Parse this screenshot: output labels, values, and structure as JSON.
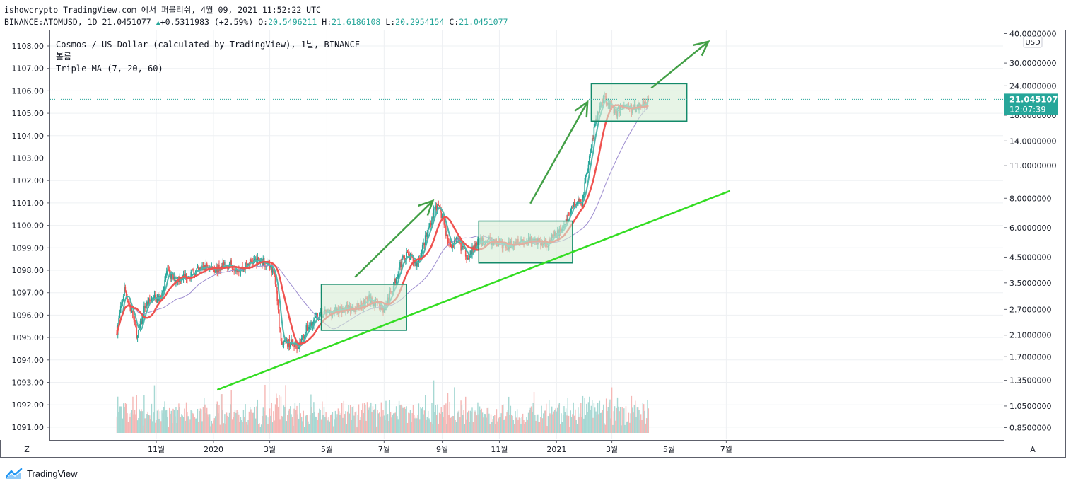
{
  "header": {
    "line1": "ishowcrypto TradingView.com 에서 퍼블리쉬, 4월 09, 2021 11:52:22 UTC",
    "symbol": "BINANCE:ATOMUSD, 1D",
    "price": "21.0451077",
    "change": "+0.5311983 (+2.59%)",
    "o_label": "O:",
    "o_value": "20.5496211",
    "h_label": "H:",
    "h_value": "21.6186108",
    "l_label": "L:",
    "l_value": "20.2954154",
    "c_label": "C:",
    "c_value": "21.0451077"
  },
  "legend": {
    "line1": "Cosmos / US Dollar (calculated by TradingView), 1날, BINANCE",
    "line2": "볼륨",
    "line3": "Triple MA (7, 20, 60)"
  },
  "colors": {
    "up": "#26a69a",
    "down": "#ef5350",
    "ma7": "#4db6ac",
    "ma20": "#ef5350",
    "ma60": "#9c8ccf",
    "trendline": "#33dd22",
    "arrow": "#43a047",
    "box_fill": "#d7ecd5",
    "box_stroke": "#138a6a"
  },
  "chart_data": {
    "type": "candlestick",
    "symbol": "BINANCE:ATOMUSD",
    "interval": "1D",
    "currency": "USD",
    "scale": "log",
    "last_price": "21.0451077",
    "countdown": "12:07:39",
    "left_axis_ticks": [
      "1108.00",
      "1107.00",
      "1106.00",
      "1105.00",
      "1104.00",
      "1103.00",
      "1102.00",
      "1101.00",
      "1100.00",
      "1099.00",
      "1098.00",
      "1097.00",
      "1096.00",
      "1095.00",
      "1094.00",
      "1093.00",
      "1092.00",
      "1091.00"
    ],
    "right_axis_ticks": [
      "40.0000000",
      "30.0000000",
      "24.0000000",
      "18.0000000",
      "14.0000000",
      "11.0000000",
      "8.0000000",
      "6.0000000",
      "4.5000000",
      "3.5000000",
      "2.7000000",
      "2.1000000",
      "1.7000000",
      "1.3500000",
      "1.0500000",
      "0.8500000"
    ],
    "x_axis_ticks": [
      "11월",
      "2020",
      "3월",
      "5월",
      "7월",
      "9월",
      "11월",
      "2021",
      "3월",
      "5월",
      "7월"
    ],
    "corner_left": "Z",
    "corner_right": "A",
    "price_path": [
      [
        "2019-09-20",
        2.2
      ],
      [
        "2019-09-28",
        3.3
      ],
      [
        "2019-10-06",
        2.6
      ],
      [
        "2019-10-12",
        2.05
      ],
      [
        "2019-10-20",
        2.8
      ],
      [
        "2019-10-28",
        3.0
      ],
      [
        "2019-11-05",
        3.0
      ],
      [
        "2019-11-12",
        3.9
      ],
      [
        "2019-11-20",
        3.6
      ],
      [
        "2019-11-28",
        3.7
      ],
      [
        "2019-12-06",
        3.8
      ],
      [
        "2019-12-14",
        3.9
      ],
      [
        "2019-12-24",
        4.1
      ],
      [
        "2020-01-05",
        4.0
      ],
      [
        "2020-01-18",
        4.2
      ],
      [
        "2020-01-30",
        4.0
      ],
      [
        "2020-02-10",
        4.3
      ],
      [
        "2020-02-20",
        4.35
      ],
      [
        "2020-03-01",
        4.2
      ],
      [
        "2020-03-07",
        3.6
      ],
      [
        "2020-03-13",
        1.9
      ],
      [
        "2020-03-20",
        1.95
      ],
      [
        "2020-04-01",
        1.9
      ],
      [
        "2020-04-10",
        2.25
      ],
      [
        "2020-04-20",
        2.5
      ],
      [
        "2020-05-01",
        2.6
      ],
      [
        "2020-05-15",
        2.7
      ],
      [
        "2020-06-01",
        2.75
      ],
      [
        "2020-06-15",
        3.0
      ],
      [
        "2020-07-01",
        2.7
      ],
      [
        "2020-07-10",
        3.3
      ],
      [
        "2020-07-18",
        4.2
      ],
      [
        "2020-07-25",
        4.6
      ],
      [
        "2020-08-05",
        4.2
      ],
      [
        "2020-08-15",
        5.5
      ],
      [
        "2020-08-25",
        7.5
      ],
      [
        "2020-09-01",
        6.7
      ],
      [
        "2020-09-08",
        5.1
      ],
      [
        "2020-09-18",
        5.2
      ],
      [
        "2020-09-28",
        4.55
      ],
      [
        "2020-10-10",
        5.2
      ],
      [
        "2020-10-20",
        5.3
      ],
      [
        "2020-11-01",
        5.1
      ],
      [
        "2020-11-10",
        5.0
      ],
      [
        "2020-11-20",
        5.4
      ],
      [
        "2020-12-01",
        5.2
      ],
      [
        "2020-12-10",
        5.3
      ],
      [
        "2020-12-20",
        5.1
      ],
      [
        "2021-01-01",
        5.6
      ],
      [
        "2021-01-10",
        6.2
      ],
      [
        "2021-01-18",
        7.5
      ],
      [
        "2021-01-28",
        7.7
      ],
      [
        "2021-02-06",
        13.0
      ],
      [
        "2021-02-12",
        17.0
      ],
      [
        "2021-02-20",
        22.0
      ],
      [
        "2021-02-26",
        20.0
      ],
      [
        "2021-03-06",
        18.5
      ],
      [
        "2021-03-14",
        20.0
      ],
      [
        "2021-03-22",
        19.0
      ],
      [
        "2021-04-01",
        20.0
      ],
      [
        "2021-04-09",
        21.05
      ]
    ],
    "ma20_path": [
      [
        "2019-09-20",
        2.2
      ],
      [
        "2019-10-10",
        2.6
      ],
      [
        "2019-10-25",
        2.6
      ],
      [
        "2019-11-15",
        3.1
      ],
      [
        "2019-12-01",
        3.4
      ],
      [
        "2019-12-20",
        3.7
      ],
      [
        "2020-01-15",
        3.9
      ],
      [
        "2020-02-15",
        4.2
      ],
      [
        "2020-03-01",
        4.1
      ],
      [
        "2020-03-15",
        3.2
      ],
      [
        "2020-03-28",
        2.1
      ],
      [
        "2020-04-15",
        2.0
      ],
      [
        "2020-05-01",
        2.35
      ],
      [
        "2020-05-20",
        2.55
      ],
      [
        "2020-06-15",
        2.7
      ],
      [
        "2020-07-05",
        2.7
      ],
      [
        "2020-07-20",
        3.4
      ],
      [
        "2020-08-10",
        4.3
      ],
      [
        "2020-08-25",
        5.5
      ],
      [
        "2020-09-05",
        5.7
      ],
      [
        "2020-09-20",
        5.0
      ],
      [
        "2020-10-05",
        4.75
      ],
      [
        "2020-10-25",
        5.1
      ],
      [
        "2020-11-15",
        5.05
      ],
      [
        "2020-12-05",
        5.2
      ],
      [
        "2020-12-25",
        5.2
      ],
      [
        "2021-01-10",
        5.4
      ],
      [
        "2021-01-28",
        6.7
      ],
      [
        "2021-02-12",
        10.5
      ],
      [
        "2021-02-25",
        17.5
      ],
      [
        "2021-03-10",
        19.0
      ],
      [
        "2021-03-25",
        19.0
      ],
      [
        "2021-04-09",
        20.0
      ]
    ],
    "ma60_path": [
      [
        "2019-09-20",
        2.2
      ],
      [
        "2019-11-01",
        2.6
      ],
      [
        "2019-12-01",
        3.2
      ],
      [
        "2020-01-15",
        3.7
      ],
      [
        "2020-02-20",
        4.0
      ],
      [
        "2020-03-10",
        3.9
      ],
      [
        "2020-04-01",
        3.3
      ],
      [
        "2020-04-25",
        2.4
      ],
      [
        "2020-05-20",
        2.35
      ],
      [
        "2020-06-20",
        2.55
      ],
      [
        "2020-07-20",
        2.9
      ],
      [
        "2020-08-20",
        3.8
      ],
      [
        "2020-09-20",
        4.6
      ],
      [
        "2020-10-20",
        5.0
      ],
      [
        "2020-11-20",
        5.1
      ],
      [
        "2020-12-20",
        5.2
      ],
      [
        "2021-01-20",
        5.6
      ],
      [
        "2021-02-10",
        7.0
      ],
      [
        "2021-02-25",
        10.5
      ],
      [
        "2021-03-15",
        14.5
      ],
      [
        "2021-04-09",
        18.0
      ]
    ],
    "rectangles": [
      {
        "from": "2020-04-25",
        "to": "2020-07-25",
        "top": 3.45,
        "bottom": 2.2
      },
      {
        "from": "2020-10-10",
        "to": "2021-01-18",
        "top": 6.4,
        "bottom": 4.25
      },
      {
        "from": "2021-02-07",
        "to": "2021-05-20",
        "top": 24.5,
        "bottom": 17.0
      }
    ],
    "trendline": {
      "from": [
        "2020-01-05",
        1.23
      ],
      "to": [
        "2021-07-05",
        8.6
      ]
    },
    "arrows": [
      {
        "from": [
          "2020-05-31",
          3.7
        ],
        "to": [
          "2020-08-22",
          7.8
        ]
      },
      {
        "from": [
          "2020-12-04",
          7.6
        ],
        "to": [
          "2021-02-03",
          20.5
        ]
      },
      {
        "from": [
          "2021-04-12",
          23.5
        ],
        "to": [
          "2021-06-12",
          37.0
        ]
      }
    ]
  }
}
